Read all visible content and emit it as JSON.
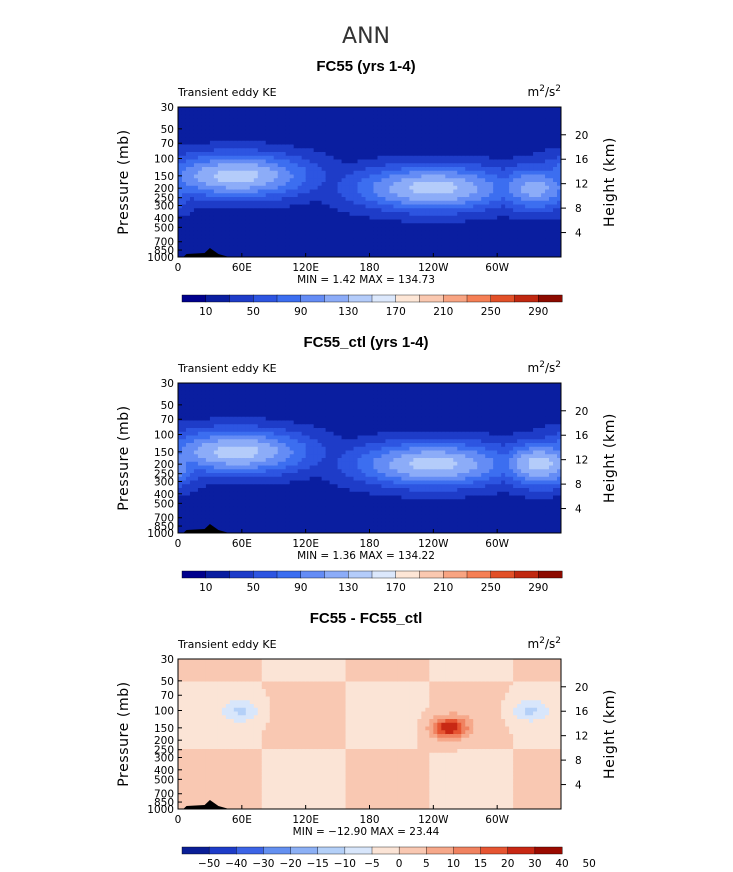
{
  "title": "ANN",
  "colors": {
    "abs": [
      "#00008c",
      "#0a1ea0",
      "#1e3cc8",
      "#2d55e1",
      "#3c6ef0",
      "#648cf5",
      "#8cacf8",
      "#b4ccfa",
      "#dce8fc",
      "#fde6d6",
      "#fac8b0",
      "#f8a482",
      "#f57f55",
      "#e25028",
      "#c02810",
      "#8c0a00"
    ],
    "diff": [
      "#0a1e96",
      "#1e3cc8",
      "#3c64e6",
      "#6490f0",
      "#8cb0f5",
      "#b4d0f8",
      "#d8e6fb",
      "#fbe4d6",
      "#f9c8b2",
      "#f6a88a",
      "#f08260",
      "#e65532",
      "#c82814",
      "#9a0a00"
    ]
  },
  "chart_data": [
    {
      "type": "heatmap",
      "title": "FC55 (yrs 1-4)",
      "left_label": "Transient eddy KE",
      "units_base": "m",
      "units_exp": "2",
      "units_sep": "/s",
      "ylabel": "Pressure (mb)",
      "ylabel_right": "Height (km)",
      "y_ticks": [
        "30",
        "50",
        "70",
        "100",
        "150",
        "200",
        "250",
        "300",
        "400",
        "500",
        "700",
        "850",
        "1000"
      ],
      "y_right_ticks": [
        "20",
        "16",
        "12",
        "8",
        "4"
      ],
      "x_ticks": [
        "0",
        "60E",
        "120E",
        "180",
        "120W",
        "60W"
      ],
      "xlim": [
        0,
        360
      ],
      "minmax": "MIN =     1.42   MAX =  134.73",
      "min": 1.42,
      "max": 134.73,
      "colorbar_labels": [
        "10",
        "50",
        "90",
        "130",
        "170",
        "210",
        "250",
        "290"
      ],
      "colorbar_levels": [
        10,
        30,
        50,
        70,
        90,
        110,
        130,
        150,
        170,
        190,
        210,
        230,
        250,
        270,
        290
      ],
      "jets": [
        {
          "lon_range": [
            0,
            120
          ],
          "pressure_core": 150,
          "lon_core": 55,
          "max_level": 130
        },
        {
          "lon_range": [
            160,
            290
          ],
          "pressure_core": 200,
          "lon_core": 240,
          "max_level": 130
        },
        {
          "lon_range": [
            295,
            360
          ],
          "pressure_core": 200,
          "lon_core": 335,
          "max_level": 110
        }
      ]
    },
    {
      "type": "heatmap",
      "title": "FC55_ctl (yrs 1-4)",
      "left_label": "Transient eddy KE",
      "units_base": "m",
      "units_exp": "2",
      "units_sep": "/s",
      "ylabel": "Pressure (mb)",
      "ylabel_right": "Height (km)",
      "y_ticks": [
        "30",
        "50",
        "70",
        "100",
        "150",
        "200",
        "250",
        "300",
        "400",
        "500",
        "700",
        "850",
        "1000"
      ],
      "y_right_ticks": [
        "20",
        "16",
        "12",
        "8",
        "4"
      ],
      "x_ticks": [
        "0",
        "60E",
        "120E",
        "180",
        "120W",
        "60W"
      ],
      "xlim": [
        0,
        360
      ],
      "minmax": "MIN =     1.36   MAX =  134.22",
      "min": 1.36,
      "max": 134.22,
      "colorbar_labels": [
        "10",
        "50",
        "90",
        "130",
        "170",
        "210",
        "250",
        "290"
      ],
      "colorbar_levels": [
        10,
        30,
        50,
        70,
        90,
        110,
        130,
        150,
        170,
        190,
        210,
        230,
        250,
        270,
        290
      ],
      "jets": [
        {
          "lon_range": [
            0,
            120
          ],
          "pressure_core": 150,
          "lon_core": 55,
          "max_level": 130
        },
        {
          "lon_range": [
            160,
            290
          ],
          "pressure_core": 200,
          "lon_core": 240,
          "max_level": 130
        },
        {
          "lon_range": [
            295,
            360
          ],
          "pressure_core": 200,
          "lon_core": 340,
          "max_level": 130
        }
      ]
    },
    {
      "type": "heatmap",
      "title": "FC55 - FC55_ctl",
      "left_label": "Transient eddy KE",
      "units_base": "m",
      "units_exp": "2",
      "units_sep": "/s",
      "ylabel": "Pressure (mb)",
      "ylabel_right": "Height (km)",
      "y_ticks": [
        "30",
        "50",
        "70",
        "100",
        "150",
        "200",
        "250",
        "300",
        "400",
        "500",
        "700",
        "850",
        "1000"
      ],
      "y_right_ticks": [
        "20",
        "16",
        "12",
        "8",
        "4"
      ],
      "x_ticks": [
        "0",
        "60E",
        "120E",
        "180",
        "120W",
        "60W"
      ],
      "xlim": [
        0,
        360
      ],
      "minmax": "MIN = −12.90   MAX =   23.44",
      "min": -12.9,
      "max": 23.44,
      "colorbar_labels": [
        "−50",
        "−40",
        "−30",
        "−20",
        "−15",
        "−10",
        "−5",
        "0",
        "5",
        "10",
        "15",
        "20",
        "30",
        "40",
        "50"
      ],
      "colorbar_levels": [
        -50,
        -40,
        -30,
        -20,
        -15,
        -10,
        -5,
        0,
        5,
        10,
        15,
        20,
        30,
        40,
        50
      ],
      "features": [
        {
          "lon": 255,
          "pressure": 150,
          "value": 23.44
        },
        {
          "lon": 60,
          "pressure": 100,
          "value": -10
        },
        {
          "lon": 330,
          "pressure": 100,
          "value": -10
        }
      ]
    }
  ]
}
